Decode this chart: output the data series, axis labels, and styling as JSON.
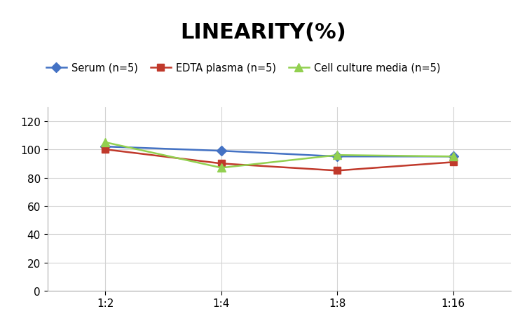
{
  "title": "LINEARITY(%)",
  "title_fontsize": 22,
  "title_fontweight": "bold",
  "x_labels": [
    "1:2",
    "1:4",
    "1:8",
    "1:16"
  ],
  "series": [
    {
      "name": "Serum (n=5)",
      "values": [
        102,
        99,
        95,
        95
      ],
      "color": "#4472C4",
      "marker": "D",
      "markersize": 7,
      "linewidth": 1.8
    },
    {
      "name": "EDTA plasma (n=5)",
      "values": [
        100,
        90,
        85,
        91
      ],
      "color": "#C0392B",
      "marker": "s",
      "markersize": 7,
      "linewidth": 1.8
    },
    {
      "name": "Cell culture media (n=5)",
      "values": [
        105,
        87,
        96,
        95
      ],
      "color": "#92D050",
      "marker": "^",
      "markersize": 8,
      "linewidth": 1.8
    }
  ],
  "ylim": [
    0,
    130
  ],
  "yticks": [
    0,
    20,
    40,
    60,
    80,
    100,
    120
  ],
  "grid_color": "#D3D3D3",
  "background_color": "#FFFFFF",
  "legend_fontsize": 10.5,
  "axis_fontsize": 11
}
